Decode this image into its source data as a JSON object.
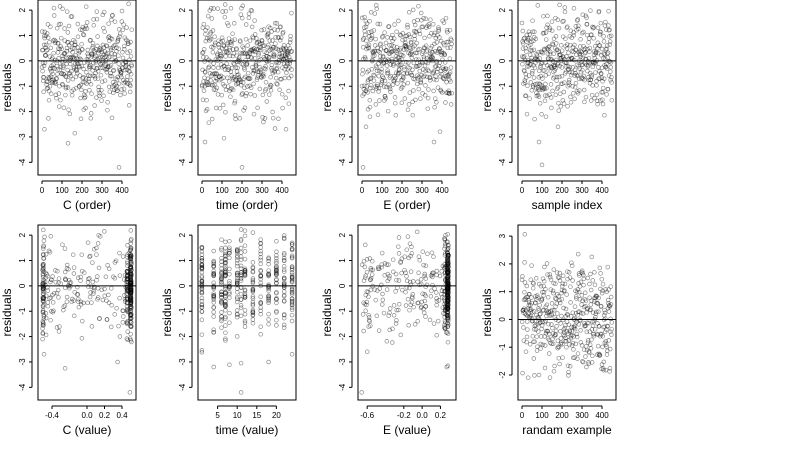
{
  "chart_data": [
    {
      "type": "scatter",
      "xlabel": "C (order)",
      "ylabel": "residuals",
      "xlim": [
        -20,
        470
      ],
      "ylim": [
        -4.5,
        2.4
      ],
      "x_ticks": [
        0,
        100,
        200,
        300,
        400
      ],
      "x_tick_labels": [
        "0",
        "100",
        "200",
        "300",
        "400"
      ],
      "y_ticks": [
        -4,
        -3,
        -2,
        -1,
        0,
        1,
        2
      ],
      "y_tick_labels": [
        "-4",
        "-3",
        "-2",
        "-1",
        "0",
        "1",
        "2"
      ],
      "reference_line_y": 0,
      "x_mode": "order",
      "n": 450,
      "seed": 11,
      "sd": 0.9,
      "outliers": [
        [
          12,
          -2.7
        ],
        [
          130,
          -3.25
        ],
        [
          290,
          -3.05
        ],
        [
          385,
          -4.2
        ],
        [
          350,
          -2.25
        ]
      ]
    },
    {
      "type": "scatter",
      "xlabel": "time (order)",
      "ylabel": "residuals",
      "xlim": [
        -20,
        470
      ],
      "ylim": [
        -4.5,
        2.4
      ],
      "x_ticks": [
        0,
        100,
        200,
        300,
        400
      ],
      "x_tick_labels": [
        "0",
        "100",
        "200",
        "300",
        "400"
      ],
      "y_ticks": [
        -4,
        -3,
        -2,
        -1,
        0,
        1,
        2
      ],
      "y_tick_labels": [
        "-4",
        "-3",
        "-2",
        "-1",
        "0",
        "1",
        "2"
      ],
      "reference_line_y": 0,
      "x_mode": "order",
      "n": 450,
      "seed": 23,
      "sd": 0.9,
      "outliers": [
        [
          15,
          -3.2
        ],
        [
          110,
          -3.05
        ],
        [
          200,
          -4.2
        ],
        [
          260,
          -2.1
        ],
        [
          420,
          -2.7
        ]
      ]
    },
    {
      "type": "scatter",
      "xlabel": "E (order)",
      "ylabel": "residuals",
      "xlim": [
        -20,
        470
      ],
      "ylim": [
        -4.5,
        2.4
      ],
      "x_ticks": [
        0,
        100,
        200,
        300,
        400
      ],
      "x_tick_labels": [
        "0",
        "100",
        "200",
        "300",
        "400"
      ],
      "y_ticks": [
        -4,
        -3,
        -2,
        -1,
        0,
        1,
        2
      ],
      "y_tick_labels": [
        "-4",
        "-3",
        "-2",
        "-1",
        "0",
        "1",
        "2"
      ],
      "reference_line_y": 0,
      "x_mode": "order",
      "n": 450,
      "seed": 37,
      "sd": 0.9,
      "outliers": [
        [
          5,
          -4.2
        ],
        [
          20,
          -2.6
        ],
        [
          360,
          -3.2
        ],
        [
          40,
          -2.2
        ]
      ]
    },
    {
      "type": "scatter",
      "xlabel": "sample index",
      "ylabel": "residuals",
      "xlim": [
        -20,
        470
      ],
      "ylim": [
        -4.5,
        2.4
      ],
      "x_ticks": [
        0,
        100,
        200,
        300,
        400
      ],
      "x_tick_labels": [
        "0",
        "100",
        "200",
        "300",
        "400"
      ],
      "y_ticks": [
        -4,
        -3,
        -2,
        -1,
        0,
        1,
        2
      ],
      "y_tick_labels": [
        "-4",
        "-3",
        "-2",
        "-1",
        "0",
        "1",
        "2"
      ],
      "reference_line_y": 0,
      "x_mode": "order",
      "n": 450,
      "seed": 41,
      "sd": 0.9,
      "outliers": [
        [
          85,
          -3.2
        ],
        [
          100,
          -4.1
        ],
        [
          180,
          -2.6
        ],
        [
          120,
          -2.2
        ]
      ]
    },
    {
      "type": "scatter",
      "xlabel": "C (value)",
      "ylabel": "residuals",
      "xlim": [
        -0.56,
        0.56
      ],
      "ylim": [
        -4.5,
        2.4
      ],
      "x_ticks": [
        -0.4,
        0.0,
        0.2,
        0.4
      ],
      "x_tick_labels": [
        "-0.4",
        "0.0",
        "0.2",
        "0.4"
      ],
      "y_ticks": [
        -4,
        -3,
        -2,
        -1,
        0,
        1,
        2
      ],
      "y_tick_labels": [
        "-4",
        "-3",
        "-2",
        "-1",
        "0",
        "1",
        "2"
      ],
      "reference_line_y": 0,
      "x_mode": "clustered",
      "n": 450,
      "seed": 53,
      "sd": 0.9,
      "clusters": [
        [
          -0.5,
          0.17
        ],
        [
          0.5,
          0.35
        ],
        [
          0.46,
          0.1
        ]
      ],
      "x_range": [
        -0.5,
        0.5
      ],
      "outliers": [
        [
          -0.25,
          -3.25
        ],
        [
          0.35,
          -3.0
        ],
        [
          0.49,
          -4.2
        ],
        [
          -0.49,
          -2.7
        ]
      ]
    },
    {
      "type": "scatter",
      "xlabel": "time (value)",
      "ylabel": "residuals",
      "xlim": [
        0,
        25
      ],
      "ylim": [
        -4.5,
        2.4
      ],
      "x_ticks": [
        5,
        10,
        15,
        20
      ],
      "x_tick_labels": [
        "5",
        "10",
        "15",
        "20"
      ],
      "y_ticks": [
        -4,
        -3,
        -2,
        -1,
        0,
        1,
        2
      ],
      "y_tick_labels": [
        "-4",
        "-3",
        "-2",
        "-1",
        "0",
        "1",
        "2"
      ],
      "reference_line_y": 0,
      "x_mode": "discrete",
      "x_levels": [
        1,
        4,
        6,
        7,
        8,
        10,
        11,
        12,
        14,
        16,
        18,
        20,
        22,
        24
      ],
      "n": 450,
      "seed": 67,
      "sd": 0.9,
      "outliers": [
        [
          4,
          -3.2
        ],
        [
          11,
          -4.2
        ],
        [
          18,
          -3.0
        ],
        [
          24,
          -2.7
        ]
      ]
    },
    {
      "type": "scatter",
      "xlabel": "E (value)",
      "ylabel": "residuals",
      "xlim": [
        -0.7,
        0.37
      ],
      "ylim": [
        -4.5,
        2.4
      ],
      "x_ticks": [
        -0.6,
        -0.2,
        0.0,
        0.2
      ],
      "x_tick_labels": [
        "-0.6",
        "-0.2",
        "0.0",
        "0.2"
      ],
      "y_ticks": [
        -4,
        -3,
        -2,
        -1,
        0,
        1,
        2
      ],
      "y_tick_labels": [
        "-4",
        "-3",
        "-2",
        "-1",
        "0",
        "1",
        "2"
      ],
      "reference_line_y": 0,
      "x_mode": "clustered",
      "n": 450,
      "seed": 79,
      "sd": 0.9,
      "clusters": [
        [
          0.28,
          0.45
        ],
        [
          0.25,
          0.1
        ]
      ],
      "x_range": [
        -0.66,
        0.3
      ],
      "outliers": [
        [
          -0.66,
          -4.2
        ],
        [
          0.27,
          -3.2
        ],
        [
          -0.6,
          -2.6
        ]
      ]
    },
    {
      "type": "scatter",
      "xlabel": "randam example",
      "ylabel": "residuals",
      "xlim": [
        -20,
        470
      ],
      "ylim": [
        -2.9,
        3.4
      ],
      "x_ticks": [
        0,
        100,
        200,
        300,
        400
      ],
      "x_tick_labels": [
        "0",
        "100",
        "200",
        "300",
        "400"
      ],
      "y_ticks": [
        -2,
        -1,
        0,
        1,
        2,
        3
      ],
      "y_tick_labels": [
        "-2",
        "-1",
        "0",
        "1",
        "2",
        "3"
      ],
      "reference_line_y": 0,
      "x_mode": "order",
      "n": 450,
      "seed": 97,
      "sd": 1.0,
      "outliers": []
    }
  ]
}
